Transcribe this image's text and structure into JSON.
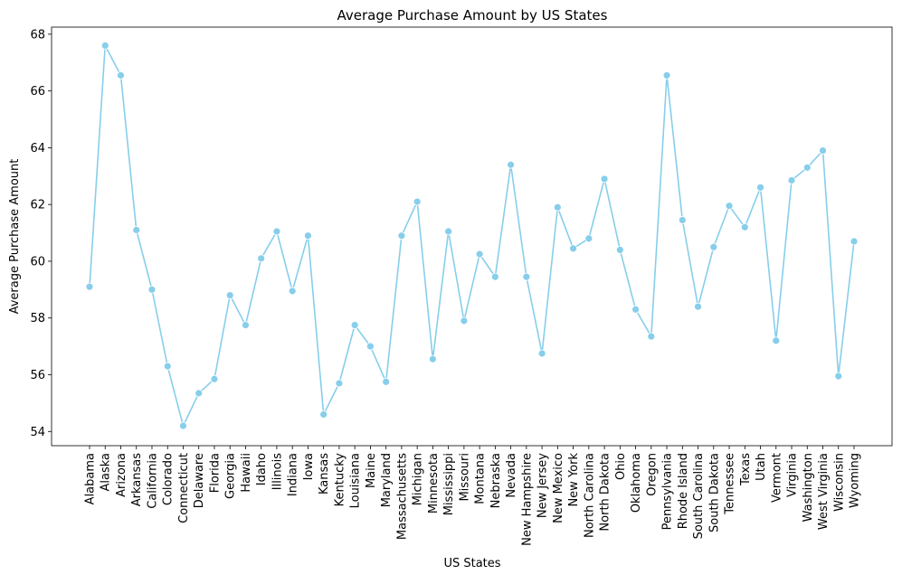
{
  "chart_data": {
    "type": "line",
    "title": "Average Purchase Amount by US States",
    "xlabel": "US States",
    "ylabel": "Average Purchase Amount",
    "ylim": [
      53.5,
      68.25
    ],
    "yticks": [
      "54",
      "56",
      "58",
      "60",
      "62",
      "64",
      "66",
      "68"
    ],
    "grid": false,
    "categories": [
      "Alabama",
      "Alaska",
      "Arizona",
      "Arkansas",
      "California",
      "Colorado",
      "Connecticut",
      "Delaware",
      "Florida",
      "Georgia",
      "Hawaii",
      "Idaho",
      "Illinois",
      "Indiana",
      "Iowa",
      "Kansas",
      "Kentucky",
      "Louisiana",
      "Maine",
      "Maryland",
      "Massachusetts",
      "Michigan",
      "Minnesota",
      "Mississippi",
      "Missouri",
      "Montana",
      "Nebraska",
      "Nevada",
      "New Hampshire",
      "New Jersey",
      "New Mexico",
      "New York",
      "North Carolina",
      "North Dakota",
      "Ohio",
      "Oklahoma",
      "Oregon",
      "Pennsylvania",
      "Rhode Island",
      "South Carolina",
      "South Dakota",
      "Tennessee",
      "Texas",
      "Utah",
      "Vermont",
      "Virginia",
      "Washington",
      "West Virginia",
      "Wisconsin",
      "Wyoming"
    ],
    "values": [
      59.1,
      67.6,
      66.55,
      61.1,
      59.0,
      56.3,
      54.2,
      55.35,
      55.85,
      58.8,
      57.75,
      60.1,
      61.05,
      58.95,
      60.9,
      54.6,
      55.7,
      57.75,
      57.0,
      55.75,
      60.9,
      62.1,
      56.55,
      61.05,
      57.9,
      60.25,
      59.45,
      63.4,
      59.45,
      56.75,
      61.9,
      60.45,
      60.8,
      62.9,
      60.4,
      58.3,
      57.35,
      66.55,
      61.45,
      58.4,
      60.5,
      61.95,
      61.2,
      62.6,
      57.2,
      62.85,
      63.3,
      63.9,
      55.95,
      60.7
    ],
    "line_color": "#87CEEB"
  }
}
